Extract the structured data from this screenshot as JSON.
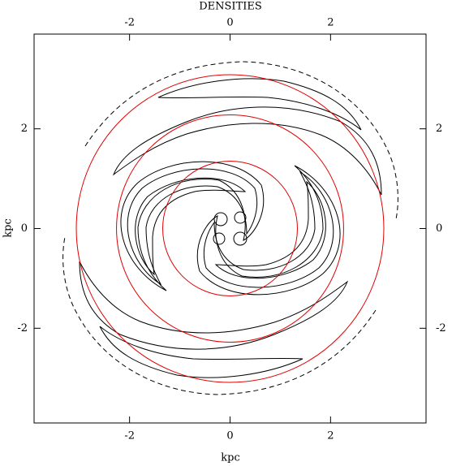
{
  "chart_data": {
    "type": "contour",
    "title": "DENSITIES",
    "xlabel": "kpc",
    "ylabel": "kpc",
    "xlim": [
      -3.9,
      3.9
    ],
    "ylim": [
      -3.9,
      3.9
    ],
    "xticks": [
      -2,
      0,
      2
    ],
    "yticks": [
      -2,
      0,
      2
    ],
    "circles": {
      "color": "#e00000",
      "radii": [
        1.34,
        2.26,
        3.06
      ]
    }
  }
}
